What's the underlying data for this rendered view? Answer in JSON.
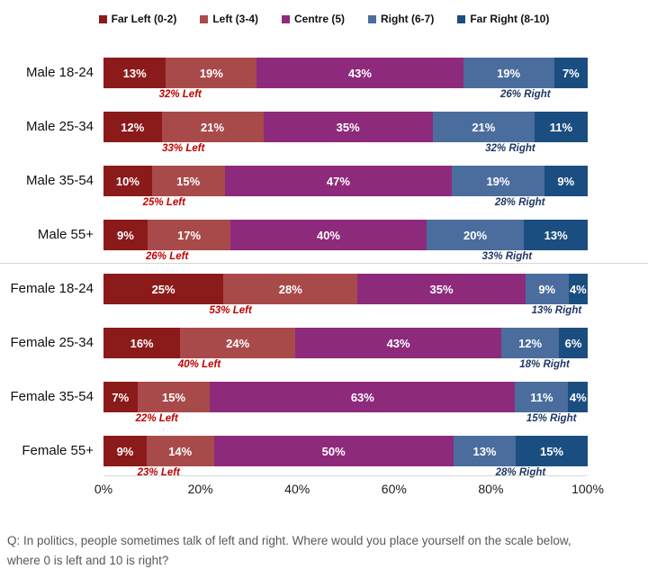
{
  "legend": {
    "items": [
      {
        "label": "Far Left (0-2)",
        "color": "#8B1A1A"
      },
      {
        "label": "Left (3-4)",
        "color": "#A94A4A"
      },
      {
        "label": "Centre (5)",
        "color": "#8E2A7B"
      },
      {
        "label": "Right (6-7)",
        "color": "#4A6D9E"
      },
      {
        "label": "Far Right (8-10)",
        "color": "#1B4E80"
      }
    ]
  },
  "chart_data": {
    "type": "bar",
    "orientation": "horizontal-stacked",
    "title": "",
    "categories": [
      "Male 18-24",
      "Male 25-34",
      "Male 35-54",
      "Male 55+",
      "Female 18-24",
      "Female 25-34",
      "Female 35-54",
      "Female 55+"
    ],
    "series": [
      {
        "name": "Far Left (0-2)",
        "color": "#8B1A1A",
        "values": [
          13,
          12,
          10,
          9,
          25,
          16,
          7,
          9
        ]
      },
      {
        "name": "Left (3-4)",
        "color": "#A94A4A",
        "values": [
          19,
          21,
          15,
          17,
          28,
          24,
          15,
          14
        ]
      },
      {
        "name": "Centre (5)",
        "color": "#8E2A7B",
        "values": [
          43,
          35,
          47,
          40,
          35,
          43,
          63,
          50
        ]
      },
      {
        "name": "Right (6-7)",
        "color": "#4A6D9E",
        "values": [
          19,
          21,
          19,
          20,
          9,
          12,
          11,
          13
        ]
      },
      {
        "name": "Far Right (8-10)",
        "color": "#1B4E80",
        "values": [
          7,
          11,
          9,
          13,
          4,
          6,
          4,
          15
        ]
      }
    ],
    "value_suffix": "%",
    "x_ticks": [
      "0%",
      "20%",
      "40%",
      "60%",
      "80%",
      "100%"
    ],
    "x_range": [
      0,
      100
    ],
    "grid": false,
    "legend_position": "top",
    "annotations": {
      "left": {
        "color": "#C00000",
        "labels": [
          "32% Left",
          "33% Left",
          "25% Left",
          "26% Left",
          "53% Left",
          "40% Left",
          "22% Left",
          "23% Left"
        ]
      },
      "right": {
        "color": "#1F3864",
        "labels": [
          "26% Right",
          "32% Right",
          "28% Right",
          "33% Right",
          "13% Right",
          "18% Right",
          "15% Right",
          "28% Right"
        ]
      }
    }
  },
  "caption": {
    "line1": "Q: In politics, people sometimes talk of left and right. Where would you place yourself on the scale below,",
    "line2": "where 0 is left and 10 is right?"
  }
}
